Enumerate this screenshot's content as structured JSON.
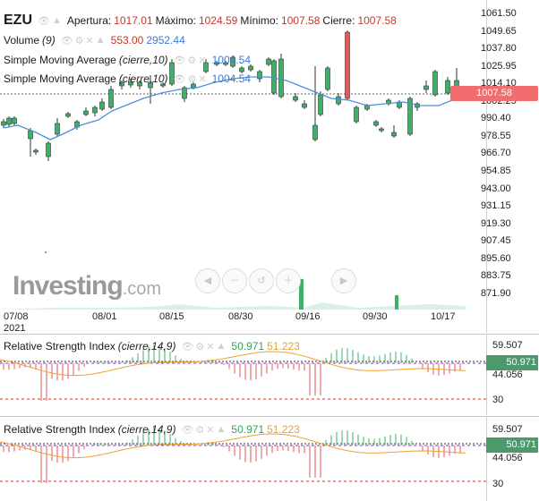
{
  "symbol": "EZU",
  "ohlc": {
    "open_label": "Apertura:",
    "open": "1017.01",
    "high_label": "Máximo:",
    "high": "1024.59",
    "low_label": "Mínimo:",
    "low": "1007.58",
    "close_label": "Cierre:",
    "close": "1007.58"
  },
  "volume": {
    "label": "Volume",
    "param": "(9)",
    "value1": "553.00",
    "value2": "2952.44"
  },
  "sma1": {
    "label": "Simple Moving Average",
    "param": "(cierre,10)",
    "value": "1004.54"
  },
  "sma2": {
    "label": "Simple Moving Average",
    "param": "(cierre,10)",
    "value": "1004.54"
  },
  "price_axis": [
    "1061.50",
    "1049.65",
    "1037.80",
    "1025.95",
    "1014.10",
    "1002.25",
    "990.40",
    "978.55",
    "966.70",
    "954.85",
    "943.00",
    "931.15",
    "919.30",
    "907.45",
    "895.60",
    "883.75",
    "871.90"
  ],
  "last_price": "1007.58",
  "date_axis": {
    "first": "07/08",
    "year": "2021",
    "ticks": [
      "08/01",
      "08/15",
      "08/30",
      "09/16",
      "09/30",
      "10/17"
    ]
  },
  "logo": {
    "main": "Investing",
    "suffix": ".com"
  },
  "rsi_panels": [
    {
      "label": "Relative Strength Index",
      "param": "(cierre,14,9)",
      "value1": "50.971",
      "value2": "51.223",
      "axis": [
        "59.507",
        "44.056",
        "30"
      ],
      "tag": "50.971"
    },
    {
      "label": "Relative Strength Index",
      "param": "(cierre,14,9)",
      "value1": "50.971",
      "value2": "51.223",
      "axis": [
        "59.507",
        "44.056",
        "30"
      ],
      "tag": "50.971"
    }
  ],
  "colors": {
    "up": "#3fb06a",
    "down": "#e05a5a",
    "sma": "#4a90d9",
    "rsi_signal": "#f0a030",
    "volume": "#bfe6d2"
  },
  "icons": [
    "eye-icon",
    "gear-icon",
    "close-icon",
    "up-icon"
  ]
}
